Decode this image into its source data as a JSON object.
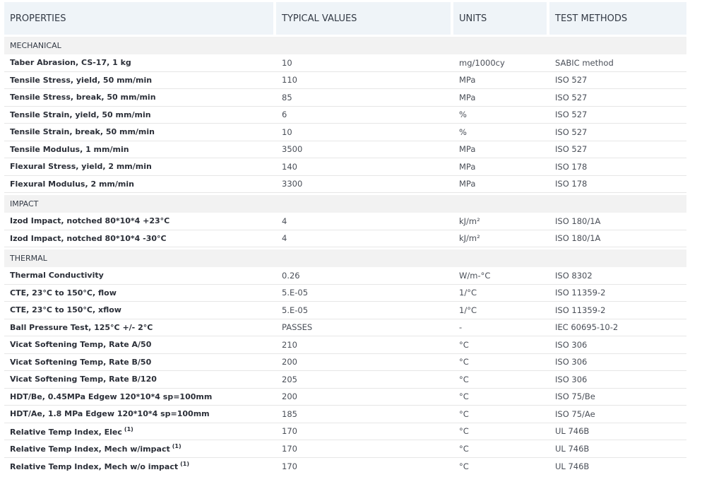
{
  "header": {
    "properties": "PROPERTIES",
    "typical_values": "TYPICAL VALUES",
    "units": "UNITS",
    "test_methods": "TEST METHODS"
  },
  "sections": [
    {
      "title": "MECHANICAL",
      "rows": [
        {
          "property": "Taber Abrasion, CS-17, 1 kg",
          "sup": "",
          "value": "10",
          "unit": "mg/1000cy",
          "method": "SABIC method"
        },
        {
          "property": "Tensile Stress, yield, 50 mm/min",
          "sup": "",
          "value": "110",
          "unit": "MPa",
          "method": "ISO 527"
        },
        {
          "property": "Tensile Stress, break, 50 mm/min",
          "sup": "",
          "value": "85",
          "unit": "MPa",
          "method": "ISO 527"
        },
        {
          "property": "Tensile Strain, yield, 50 mm/min",
          "sup": "",
          "value": "6",
          "unit": "%",
          "method": "ISO 527"
        },
        {
          "property": "Tensile Strain, break, 50 mm/min",
          "sup": "",
          "value": "10",
          "unit": "%",
          "method": "ISO 527"
        },
        {
          "property": "Tensile Modulus, 1 mm/min",
          "sup": "",
          "value": "3500",
          "unit": "MPa",
          "method": "ISO 527"
        },
        {
          "property": "Flexural Stress, yield, 2 mm/min",
          "sup": "",
          "value": "140",
          "unit": "MPa",
          "method": "ISO 178"
        },
        {
          "property": "Flexural Modulus, 2 mm/min",
          "sup": "",
          "value": "3300",
          "unit": "MPa",
          "method": "ISO 178"
        }
      ]
    },
    {
      "title": "IMPACT",
      "rows": [
        {
          "property": "Izod Impact, notched 80*10*4 +23°C",
          "sup": "",
          "value": "4",
          "unit": "kJ/m²",
          "method": "ISO 180/1A"
        },
        {
          "property": "Izod Impact, notched 80*10*4 -30°C",
          "sup": "",
          "value": "4",
          "unit": "kJ/m²",
          "method": "ISO 180/1A"
        }
      ]
    },
    {
      "title": "THERMAL",
      "rows": [
        {
          "property": "Thermal Conductivity",
          "sup": "",
          "value": "0.26",
          "unit": "W/m-°C",
          "method": "ISO 8302"
        },
        {
          "property": "CTE, 23°C to 150°C, flow",
          "sup": "",
          "value": "5.E-05",
          "unit": "1/°C",
          "method": "ISO 11359-2"
        },
        {
          "property": "CTE, 23°C to 150°C, xflow",
          "sup": "",
          "value": "5.E-05",
          "unit": "1/°C",
          "method": "ISO 11359-2"
        },
        {
          "property": "Ball Pressure Test, 125°C +/- 2°C",
          "sup": "",
          "value": "PASSES",
          "unit": "-",
          "method": "IEC 60695-10-2"
        },
        {
          "property": "Vicat Softening Temp, Rate A/50",
          "sup": "",
          "value": "210",
          "unit": "°C",
          "method": "ISO 306"
        },
        {
          "property": "Vicat Softening Temp, Rate B/50",
          "sup": "",
          "value": "200",
          "unit": "°C",
          "method": "ISO 306"
        },
        {
          "property": "Vicat Softening Temp, Rate B/120",
          "sup": "",
          "value": "205",
          "unit": "°C",
          "method": "ISO 306"
        },
        {
          "property": "HDT/Be, 0.45MPa Edgew 120*10*4 sp=100mm",
          "sup": "",
          "value": "200",
          "unit": "°C",
          "method": "ISO 75/Be"
        },
        {
          "property": "HDT/Ae, 1.8 MPa Edgew 120*10*4 sp=100mm",
          "sup": "",
          "value": "185",
          "unit": "°C",
          "method": "ISO 75/Ae"
        },
        {
          "property": "Relative Temp Index, Elec",
          "sup": "(1)",
          "value": "170",
          "unit": "°C",
          "method": "UL 746B"
        },
        {
          "property": "Relative Temp Index, Mech w/impact",
          "sup": "(1)",
          "value": "170",
          "unit": "°C",
          "method": "UL 746B"
        },
        {
          "property": "Relative Temp Index, Mech w/o impact",
          "sup": "(1)",
          "value": "170",
          "unit": "°C",
          "method": "UL 746B"
        }
      ]
    }
  ]
}
